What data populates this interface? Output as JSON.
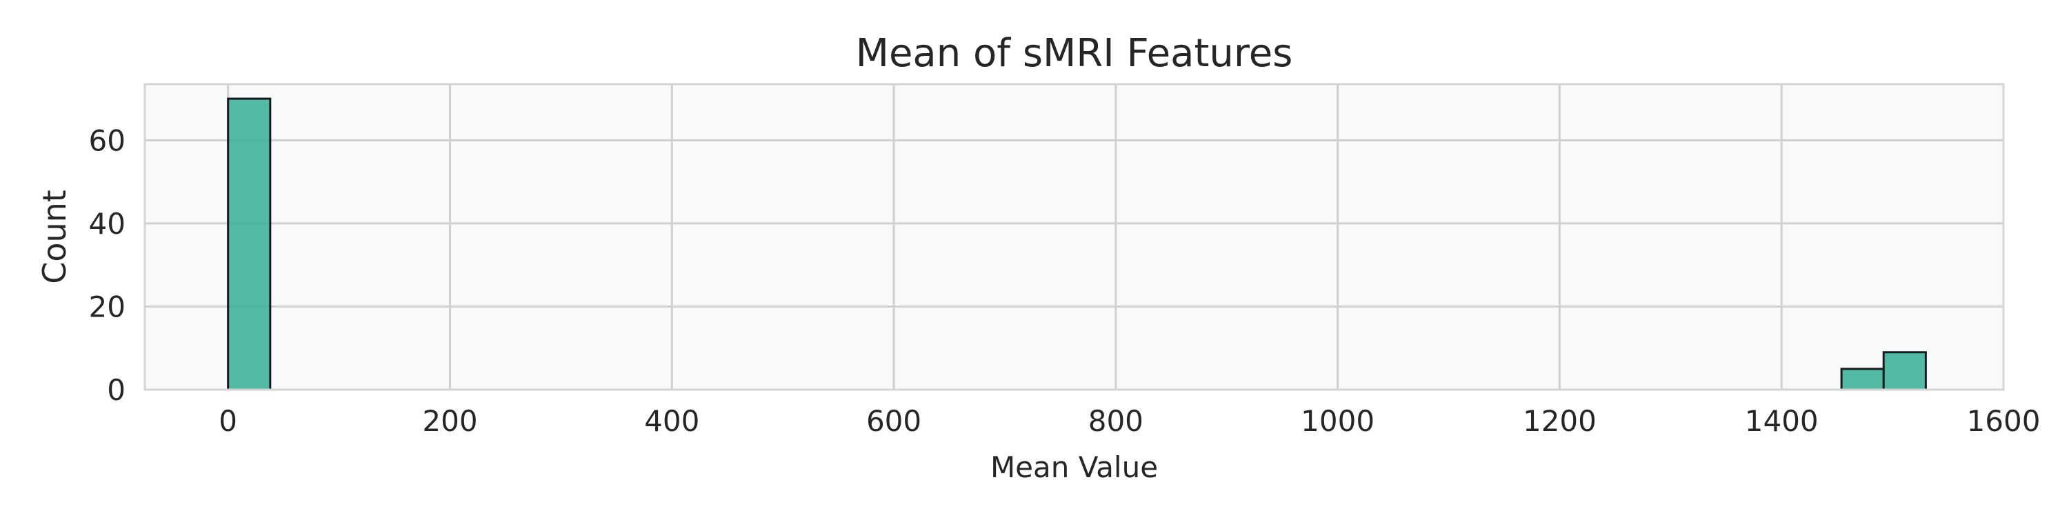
{
  "chart_data": {
    "type": "bar",
    "title": "Mean of sMRI Features",
    "xlabel": "Mean Value",
    "ylabel": "Count",
    "xlim": [
      -75,
      1600
    ],
    "ylim": [
      0,
      73.5
    ],
    "x_ticks": [
      0,
      200,
      400,
      600,
      800,
      1000,
      1200,
      1400,
      1600
    ],
    "x_tick_labels": [
      "0",
      "200",
      "400",
      "600",
      "800",
      "1000",
      "1200",
      "1400",
      "1600"
    ],
    "y_ticks": [
      0,
      20,
      40,
      60
    ],
    "y_tick_labels": [
      "0",
      "20",
      "40",
      "60"
    ],
    "grid": true,
    "legend": "none",
    "colors": {
      "bar_fill": "#3fb39a",
      "bar_edge": "#1a1a1a",
      "plot_background": "#f8f9fb",
      "grid": "#d0d0d0",
      "frame": "#d4d4d4"
    },
    "bins": [
      {
        "x_start": 0,
        "x_end": 38,
        "count": 70
      },
      {
        "x_start": 1454,
        "x_end": 1492,
        "count": 5
      },
      {
        "x_start": 1492,
        "x_end": 1530,
        "count": 9
      }
    ]
  }
}
